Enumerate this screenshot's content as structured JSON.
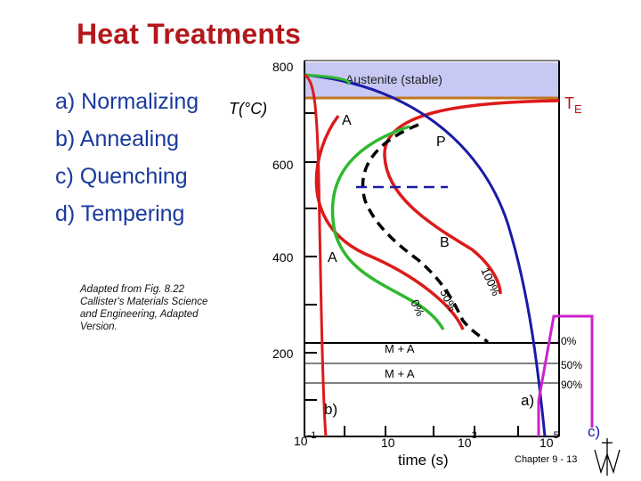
{
  "title": "Heat Treatments",
  "treatments": [
    {
      "label": "a) Normalizing"
    },
    {
      "label": "b) Annealing"
    },
    {
      "label": "c) Quenching"
    },
    {
      "label": "d) Tempering"
    }
  ],
  "diagram": {
    "y_axis_label": "T(°C)",
    "y_ticks": [
      "800",
      "600",
      "400",
      "200"
    ],
    "x_axis_label": "time (s)",
    "x_ticks": [
      {
        "base": "10",
        "exp": "-1"
      },
      {
        "base": "10",
        "exp": ""
      },
      {
        "base": "10",
        "exp": "3"
      },
      {
        "base": "10",
        "exp": "5"
      }
    ],
    "region_labels": {
      "austenite": "Austenite (stable)",
      "te_main": "T",
      "te_sub": "E",
      "a_upper": "A",
      "p": "P",
      "b": "B",
      "a_lower": "A",
      "ma_upper": "M + A",
      "ma_lower": "M + A"
    },
    "curve_percent_labels": [
      "100%",
      "50%",
      "0%"
    ],
    "martensite_percents": [
      "0%",
      "50%",
      "90%"
    ],
    "path_labels": {
      "a": "a)",
      "b": "b)",
      "c": "c)"
    },
    "colors": {
      "austenite_fill": "#c8c8f5",
      "te_line": "#c07820",
      "transformation_curves": "#dd1a1a",
      "annealing_path": "#1a1aa8",
      "normalizing_path": "#2eb82e",
      "quenching_path": "#cc22cc",
      "title": "#b3181c",
      "list_text": "#1a3a9c"
    }
  },
  "credit": [
    "Adapted from Fig. 8.22",
    "Callister's Materials Science",
    "and Engineering, Adapted",
    "Version."
  ],
  "footer": "Chapter 9 - 13"
}
